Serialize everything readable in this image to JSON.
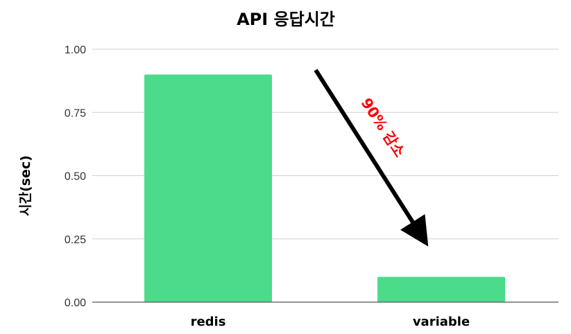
{
  "chart_data": {
    "type": "bar",
    "title": "API 응답시간",
    "xlabel": "",
    "ylabel": "시간(sec)",
    "categories": [
      "redis",
      "variable"
    ],
    "values": [
      0.9,
      0.1
    ],
    "ylim": [
      0,
      1
    ],
    "yticks": [
      "0.00",
      "0.25",
      "0.50",
      "0.75",
      "1.00"
    ],
    "bar_color": "#4cdb8b",
    "grid": true,
    "annotation": {
      "text": "90% 감소",
      "color": "#ff0000",
      "arrow_color": "#000000"
    }
  }
}
